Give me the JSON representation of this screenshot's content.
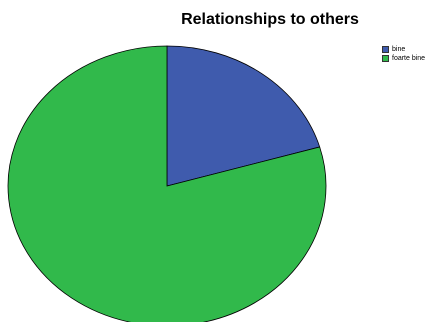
{
  "chart_data": {
    "type": "pie",
    "title": "Relationships to others",
    "categories": [
      "bine",
      "foarte bine"
    ],
    "values": [
      20.5,
      79.5
    ],
    "colors": [
      "#3f5bad",
      "#31b94b"
    ],
    "legend": {
      "placement": "top-right",
      "entries": [
        "bine",
        "foarte bine"
      ]
    },
    "start_angle": "12 o'clock",
    "direction": "clockwise"
  }
}
